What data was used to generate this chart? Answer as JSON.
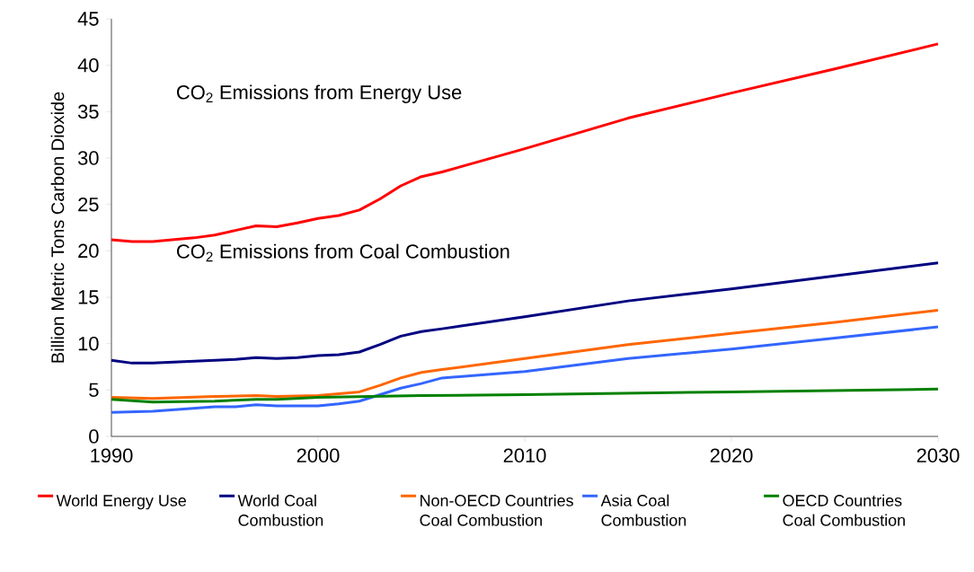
{
  "chart_data": {
    "type": "line",
    "ylabel": "Billion Metric Tons Carbon Dioxide",
    "xlim": [
      1990,
      2030
    ],
    "xticks": [
      1990,
      2000,
      2010,
      2020,
      2030
    ],
    "ylim": [
      0,
      45
    ],
    "yticks": [
      0,
      5,
      10,
      15,
      20,
      25,
      30,
      35,
      40,
      45
    ],
    "grid": false,
    "legend": "bottom",
    "marker": "none",
    "line_style": "solid",
    "annotations": [
      "CO$_{2}$ Emissions from Energy Use",
      "CO$_{2}$ Emissions from Coal Combustion"
    ],
    "series": [
      {
        "name": "World Energy Use",
        "color": "#ff0000",
        "x": [
          1990,
          1991,
          1992,
          1993,
          1994,
          1995,
          1996,
          1997,
          1998,
          1999,
          2000,
          2001,
          2002,
          2003,
          2004,
          2005,
          2006,
          2010,
          2015,
          2020,
          2025,
          2030
        ],
        "values": [
          21.2,
          21.0,
          21.0,
          21.2,
          21.4,
          21.7,
          22.2,
          22.7,
          22.6,
          23.0,
          23.5,
          23.8,
          24.4,
          25.6,
          27.0,
          28.0,
          28.5,
          31.0,
          34.3,
          37.0,
          39.6,
          42.3
        ]
      },
      {
        "name": "World Coal Combustion",
        "color": "#000080",
        "x": [
          1990,
          1991,
          1992,
          1993,
          1994,
          1995,
          1996,
          1997,
          1998,
          1999,
          2000,
          2001,
          2002,
          2003,
          2004,
          2005,
          2006,
          2010,
          2015,
          2020,
          2025,
          2030
        ],
        "values": [
          8.2,
          7.9,
          7.9,
          8.0,
          8.1,
          8.2,
          8.3,
          8.5,
          8.4,
          8.5,
          8.7,
          8.8,
          9.1,
          9.9,
          10.8,
          11.3,
          11.6,
          12.9,
          14.6,
          15.9,
          17.3,
          18.7
        ]
      },
      {
        "name": "Non-OECD Countries Coal Combustion",
        "color": "#ff6600",
        "x": [
          1990,
          1992,
          1995,
          1997,
          1998,
          2000,
          2002,
          2003,
          2004,
          2005,
          2006,
          2010,
          2015,
          2020,
          2025,
          2030
        ],
        "values": [
          4.2,
          4.1,
          4.3,
          4.4,
          4.3,
          4.4,
          4.8,
          5.5,
          6.3,
          6.9,
          7.2,
          8.4,
          9.9,
          11.1,
          12.3,
          13.6
        ]
      },
      {
        "name": "Asia Coal Combustion",
        "color": "#3366ff",
        "x": [
          1990,
          1992,
          1995,
          1996,
          1997,
          1998,
          2000,
          2001,
          2002,
          2003,
          2004,
          2005,
          2006,
          2010,
          2015,
          2020,
          2025,
          2030
        ],
        "values": [
          2.6,
          2.7,
          3.2,
          3.2,
          3.4,
          3.3,
          3.3,
          3.5,
          3.8,
          4.5,
          5.2,
          5.7,
          6.3,
          7.0,
          8.4,
          9.4,
          10.6,
          11.8
        ]
      },
      {
        "name": "OECD Countries Coal Combustion",
        "color": "#008000",
        "x": [
          1990,
          1992,
          1995,
          1997,
          1998,
          2000,
          2005,
          2010,
          2020,
          2030
        ],
        "values": [
          4.0,
          3.7,
          3.8,
          4.0,
          4.0,
          4.2,
          4.4,
          4.5,
          4.8,
          5.1
        ]
      }
    ]
  }
}
